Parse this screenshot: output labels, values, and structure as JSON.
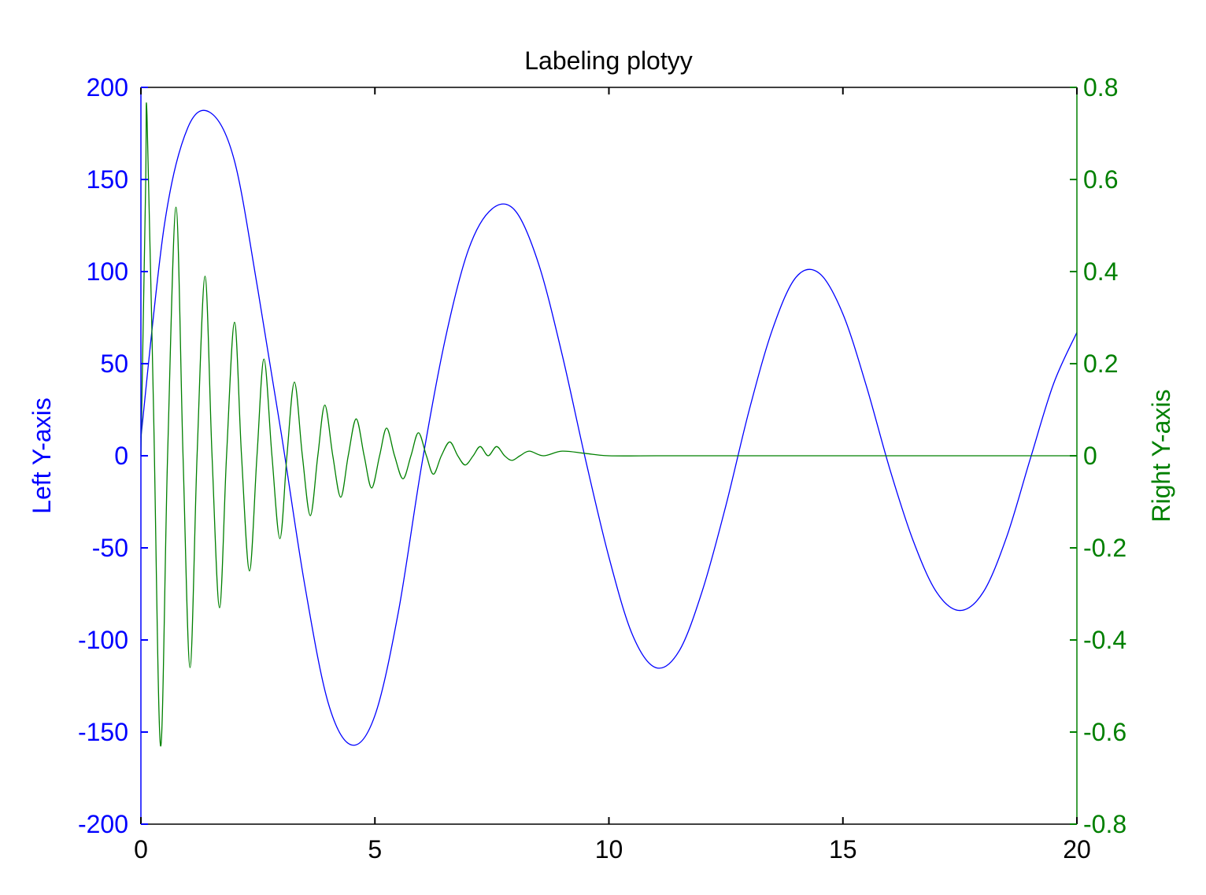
{
  "chart_data": {
    "type": "line",
    "title": "Labeling plotyy",
    "xlabel": "",
    "xlim": [
      0,
      20
    ],
    "x_ticks": [
      "0",
      "5",
      "10",
      "15",
      "20"
    ],
    "x_tick_values": [
      0,
      5,
      10,
      15,
      20
    ],
    "grid": false,
    "legend": "none",
    "left_axis": {
      "label": "Left Y-axis",
      "ylim": [
        -200,
        200
      ],
      "ticks": [
        "200",
        "150",
        "100",
        "50",
        "0",
        "-50",
        "-100",
        "-150",
        "-200"
      ],
      "tick_values": [
        200,
        150,
        100,
        50,
        0,
        -50,
        -100,
        -150,
        -200
      ],
      "color": "#0000ff"
    },
    "right_axis": {
      "label": "Right Y-axis",
      "ylim": [
        -0.8,
        0.8
      ],
      "ticks": [
        "0.8",
        "0.6",
        "0.4",
        "0.2",
        "0",
        "-0.2",
        "-0.4",
        "-0.6",
        "-0.8"
      ],
      "tick_values": [
        0.8,
        0.6,
        0.4,
        0.2,
        0,
        -0.2,
        -0.4,
        -0.6,
        -0.8
      ],
      "color": "#008000"
    },
    "series": [
      {
        "axis": "left",
        "color": "#0000ff",
        "x": [
          0,
          0.5,
          1,
          1.5,
          2,
          2.5,
          3,
          3.5,
          4,
          4.5,
          5,
          5.5,
          6,
          6.5,
          7,
          7.5,
          8,
          8.5,
          9,
          9.5,
          10,
          10.5,
          11,
          11.5,
          12,
          12.5,
          13,
          13.5,
          14,
          14.5,
          15,
          15.5,
          16,
          16.5,
          17,
          17.5,
          18,
          18.5,
          19,
          19.5,
          20
        ],
        "values": [
          10,
          125,
          178,
          186,
          160,
          90,
          12,
          -70,
          -134,
          -157,
          -141,
          -85,
          -5,
          63,
          112,
          134,
          133,
          104,
          55,
          -2,
          -55,
          -97,
          -115,
          -106,
          -73,
          -27,
          25,
          69,
          97,
          99,
          77,
          38,
          -7,
          -46,
          -74,
          -84,
          -74,
          -44,
          -2,
          39,
          67
        ]
      },
      {
        "axis": "right",
        "color": "#008000",
        "x": [
          0,
          0.1,
          0.13,
          0.27,
          0.42,
          0.57,
          0.75,
          0.9,
          1.05,
          1.2,
          1.37,
          1.52,
          1.68,
          1.83,
          2.0,
          2.15,
          2.32,
          2.48,
          2.63,
          2.8,
          2.97,
          3.12,
          3.28,
          3.45,
          3.62,
          3.78,
          3.93,
          4.1,
          4.27,
          4.43,
          4.6,
          4.77,
          4.93,
          5.1,
          5.25,
          5.42,
          5.6,
          5.77,
          5.93,
          6.1,
          6.25,
          6.42,
          6.6,
          6.77,
          6.93,
          7.1,
          7.25,
          7.42,
          7.6,
          7.77,
          7.93,
          8.1,
          8.3,
          8.6,
          9.0,
          9.5,
          10.0,
          11.0,
          12.0,
          14.0,
          17.0,
          20.0
        ],
        "values": [
          0.0,
          0.58,
          0.74,
          0.1,
          -0.63,
          0.0,
          0.54,
          0.0,
          -0.46,
          0.0,
          0.39,
          0.0,
          -0.33,
          0.0,
          0.29,
          0.0,
          -0.25,
          0.0,
          0.21,
          0.0,
          -0.18,
          0.0,
          0.16,
          0.0,
          -0.13,
          0.0,
          0.11,
          0.0,
          -0.09,
          0.0,
          0.08,
          0.0,
          -0.07,
          0.0,
          0.06,
          0.0,
          -0.05,
          0.0,
          0.05,
          0.0,
          -0.04,
          0.0,
          0.03,
          0.0,
          -0.02,
          0.0,
          0.02,
          0.0,
          0.02,
          0.0,
          -0.01,
          0.0,
          0.01,
          0.0,
          0.01,
          0.005,
          0.0,
          0.0,
          0.0,
          0.0,
          0.0,
          0.0
        ]
      }
    ]
  }
}
